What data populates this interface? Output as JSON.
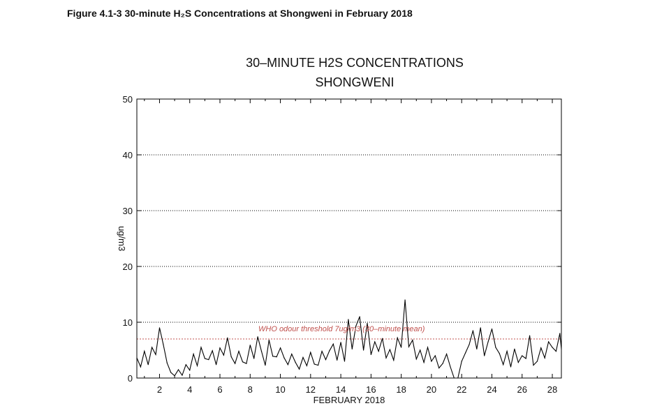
{
  "figure": {
    "caption": "Figure 4.1-3 30-minute H₂S Concentrations at Shongweni in February 2018"
  },
  "chart_data": {
    "type": "line",
    "title": "30–MINUTE H2S CONCENTRATIONS",
    "subtitle": "SHONGWENI",
    "xlabel": "FEBRUARY 2018",
    "ylabel": "ug/m3",
    "xlim": [
      0.5,
      28.6
    ],
    "ylim": [
      0,
      50
    ],
    "x_ticks": [
      2,
      4,
      6,
      8,
      10,
      12,
      14,
      16,
      18,
      20,
      22,
      24,
      26,
      28
    ],
    "y_ticks": [
      0,
      10,
      20,
      30,
      40,
      50
    ],
    "grid": {
      "horizontal_dotted": [
        10,
        20,
        30,
        40
      ]
    },
    "threshold": {
      "value": 7,
      "label": "WHO odour threshold 7ug/m3 (30–minute mean)",
      "color": "#c0504d"
    },
    "line_color": "#000000",
    "series": [
      {
        "values": [
          [
            0.5,
            3.6
          ],
          [
            0.75,
            2.0
          ],
          [
            1.0,
            4.8
          ],
          [
            1.25,
            2.4
          ],
          [
            1.5,
            5.5
          ],
          [
            1.75,
            4.2
          ],
          [
            2.0,
            9.0
          ],
          [
            2.25,
            6.0
          ],
          [
            2.5,
            2.7
          ],
          [
            2.75,
            1.0
          ],
          [
            3.0,
            0.4
          ],
          [
            3.25,
            1.5
          ],
          [
            3.5,
            0.5
          ],
          [
            3.75,
            2.4
          ],
          [
            4.0,
            1.4
          ],
          [
            4.25,
            4.3
          ],
          [
            4.5,
            2.2
          ],
          [
            4.75,
            5.5
          ],
          [
            5.0,
            3.5
          ],
          [
            5.25,
            3.3
          ],
          [
            5.5,
            4.9
          ],
          [
            5.75,
            2.4
          ],
          [
            6.0,
            5.4
          ],
          [
            6.25,
            4.1
          ],
          [
            6.5,
            7.2
          ],
          [
            6.75,
            3.8
          ],
          [
            7.0,
            2.6
          ],
          [
            7.25,
            4.8
          ],
          [
            7.5,
            2.9
          ],
          [
            7.75,
            2.6
          ],
          [
            8.0,
            5.9
          ],
          [
            8.25,
            3.5
          ],
          [
            8.5,
            7.4
          ],
          [
            8.75,
            4.8
          ],
          [
            9.0,
            2.3
          ],
          [
            9.25,
            6.8
          ],
          [
            9.5,
            3.9
          ],
          [
            9.75,
            3.8
          ],
          [
            10.0,
            5.4
          ],
          [
            10.25,
            3.6
          ],
          [
            10.5,
            2.4
          ],
          [
            10.75,
            4.3
          ],
          [
            11.0,
            2.8
          ],
          [
            11.25,
            1.6
          ],
          [
            11.5,
            3.7
          ],
          [
            11.75,
            2.2
          ],
          [
            12.0,
            4.6
          ],
          [
            12.25,
            2.5
          ],
          [
            12.5,
            2.3
          ],
          [
            12.75,
            4.8
          ],
          [
            13.0,
            3.3
          ],
          [
            13.25,
            4.9
          ],
          [
            13.5,
            6.1
          ],
          [
            13.75,
            3.2
          ],
          [
            14.0,
            6.4
          ],
          [
            14.25,
            3.0
          ],
          [
            14.5,
            10.5
          ],
          [
            14.75,
            5.2
          ],
          [
            15.0,
            9.3
          ],
          [
            15.25,
            11.0
          ],
          [
            15.5,
            5.0
          ],
          [
            15.75,
            9.8
          ],
          [
            16.0,
            4.2
          ],
          [
            16.25,
            6.5
          ],
          [
            16.5,
            4.8
          ],
          [
            16.75,
            7.1
          ],
          [
            17.0,
            3.6
          ],
          [
            17.25,
            5.1
          ],
          [
            17.5,
            3.2
          ],
          [
            17.75,
            7.2
          ],
          [
            18.0,
            5.5
          ],
          [
            18.25,
            14.0
          ],
          [
            18.5,
            5.6
          ],
          [
            18.75,
            6.8
          ],
          [
            19.0,
            3.4
          ],
          [
            19.25,
            5.0
          ],
          [
            19.5,
            2.8
          ],
          [
            19.75,
            5.5
          ],
          [
            20.0,
            3.0
          ],
          [
            20.25,
            4.0
          ],
          [
            20.5,
            1.8
          ],
          [
            20.75,
            2.6
          ],
          [
            21.0,
            4.3
          ],
          [
            21.25,
            2.0
          ],
          [
            21.5,
            0.0
          ],
          [
            21.75,
            0.0
          ],
          [
            22.0,
            3.0
          ],
          [
            22.25,
            4.5
          ],
          [
            22.5,
            6.0
          ],
          [
            22.75,
            8.5
          ],
          [
            23.0,
            5.2
          ],
          [
            23.25,
            9.0
          ],
          [
            23.5,
            4.0
          ],
          [
            23.75,
            6.5
          ],
          [
            24.0,
            8.8
          ],
          [
            24.25,
            5.5
          ],
          [
            24.5,
            4.4
          ],
          [
            24.75,
            2.4
          ],
          [
            25.0,
            4.8
          ],
          [
            25.25,
            2.0
          ],
          [
            25.5,
            5.2
          ],
          [
            25.75,
            2.8
          ],
          [
            26.0,
            4.0
          ],
          [
            26.25,
            3.5
          ],
          [
            26.5,
            7.6
          ],
          [
            26.75,
            2.3
          ],
          [
            27.0,
            3.0
          ],
          [
            27.25,
            5.4
          ],
          [
            27.5,
            3.6
          ],
          [
            27.75,
            6.5
          ],
          [
            28.0,
            5.5
          ],
          [
            28.25,
            4.8
          ],
          [
            28.5,
            8.0
          ],
          [
            28.6,
            5.2
          ]
        ]
      }
    ]
  }
}
